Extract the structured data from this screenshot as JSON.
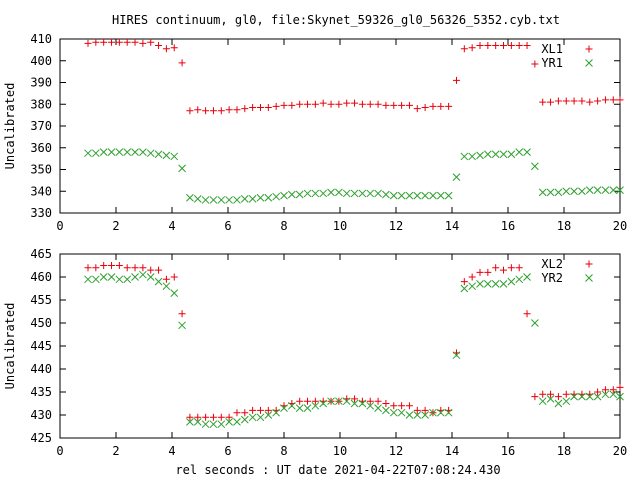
{
  "title": "HIRES continuum, gl0, file:Skynet_59326_gl0_56326_5352.cyb.txt",
  "xlabel": "rel seconds : UT date 2021-04-22T07:08:24.430",
  "colors": {
    "red": "#e8000b",
    "green": "#2ca02c"
  },
  "chart_data": [
    {
      "type": "scatter",
      "ylabel": "Uncalibrated",
      "xlim": [
        0,
        20
      ],
      "ylim": [
        330,
        410
      ],
      "xticks": [
        0,
        2,
        4,
        6,
        8,
        10,
        12,
        14,
        16,
        18,
        20
      ],
      "yticks": [
        330,
        340,
        350,
        360,
        370,
        380,
        390,
        400,
        410
      ],
      "grid": false,
      "legend_position": "top-right",
      "series": [
        {
          "name": "XL1",
          "marker": "plus",
          "color": "#e8000b",
          "x": [
            1.0,
            1.28,
            1.56,
            1.84,
            2.12,
            2.4,
            2.68,
            2.96,
            3.24,
            3.52,
            3.8,
            4.08,
            4.36,
            4.64,
            4.92,
            5.2,
            5.48,
            5.76,
            6.04,
            6.32,
            6.6,
            6.88,
            7.16,
            7.44,
            7.72,
            8.0,
            8.28,
            8.56,
            8.84,
            9.12,
            9.4,
            9.68,
            9.96,
            10.24,
            10.52,
            10.8,
            11.08,
            11.36,
            11.64,
            11.92,
            12.2,
            12.48,
            12.76,
            13.04,
            13.32,
            13.6,
            13.88,
            14.16,
            14.44,
            14.72,
            15.0,
            15.28,
            15.56,
            15.84,
            16.12,
            16.4,
            16.68,
            16.96,
            17.24,
            17.52,
            17.8,
            18.08,
            18.36,
            18.64,
            18.92,
            19.2,
            19.48,
            19.76,
            20.0
          ],
          "y": [
            408,
            408.5,
            408.5,
            408.5,
            408.5,
            408.5,
            408.5,
            408,
            408.5,
            407,
            405.5,
            406,
            399,
            377,
            377.5,
            377,
            377,
            377,
            377.5,
            377.5,
            378,
            378.5,
            378.5,
            378.5,
            379,
            379.5,
            379.5,
            380,
            380,
            380,
            380.5,
            380,
            380,
            380.5,
            380.5,
            380,
            380,
            380,
            379.5,
            379.5,
            379.5,
            379.5,
            378,
            378.5,
            379,
            379,
            379,
            391,
            405.5,
            406,
            407,
            407,
            407,
            407,
            407,
            407,
            407,
            398.5,
            381,
            381,
            381.5,
            381.5,
            381.5,
            381.5,
            381,
            381.5,
            382,
            382,
            382
          ]
        },
        {
          "name": "YR1",
          "marker": "cross",
          "color": "#2ca02c",
          "x": [
            1.0,
            1.28,
            1.56,
            1.84,
            2.12,
            2.4,
            2.68,
            2.96,
            3.24,
            3.52,
            3.8,
            4.08,
            4.36,
            4.64,
            4.92,
            5.2,
            5.48,
            5.76,
            6.04,
            6.32,
            6.6,
            6.88,
            7.16,
            7.44,
            7.72,
            8.0,
            8.28,
            8.56,
            8.84,
            9.12,
            9.4,
            9.68,
            9.96,
            10.24,
            10.52,
            10.8,
            11.08,
            11.36,
            11.64,
            11.92,
            12.2,
            12.48,
            12.76,
            13.04,
            13.32,
            13.6,
            13.88,
            14.16,
            14.44,
            14.72,
            15.0,
            15.28,
            15.56,
            15.84,
            16.12,
            16.4,
            16.68,
            16.96,
            17.24,
            17.52,
            17.8,
            18.08,
            18.36,
            18.64,
            18.92,
            19.2,
            19.48,
            19.76,
            20.0
          ],
          "y": [
            357.5,
            357.5,
            358,
            358,
            358,
            358,
            358,
            358,
            357.5,
            357,
            356.5,
            356,
            350.5,
            337,
            336.5,
            336,
            336,
            336,
            336,
            336,
            336.5,
            336.5,
            337,
            337,
            337.5,
            338,
            338.5,
            338.5,
            339,
            339,
            339,
            339.5,
            339.5,
            339,
            339,
            339,
            339,
            339,
            338.5,
            338,
            338,
            338,
            338,
            338,
            338,
            338,
            338,
            346.5,
            356,
            356,
            356.5,
            357,
            357,
            357,
            357,
            358,
            358,
            351.5,
            339.5,
            339.5,
            339.5,
            340,
            340,
            340,
            340.5,
            340.5,
            340.5,
            340.5,
            340.5
          ]
        }
      ]
    },
    {
      "type": "scatter",
      "ylabel": "Uncalibrated",
      "xlim": [
        0,
        20
      ],
      "ylim": [
        425,
        465
      ],
      "xticks": [
        0,
        2,
        4,
        6,
        8,
        10,
        12,
        14,
        16,
        18,
        20
      ],
      "yticks": [
        425,
        430,
        435,
        440,
        445,
        450,
        455,
        460,
        465
      ],
      "grid": false,
      "legend_position": "top-right",
      "series": [
        {
          "name": "XL2",
          "marker": "plus",
          "color": "#e8000b",
          "x": [
            1.0,
            1.28,
            1.56,
            1.84,
            2.12,
            2.4,
            2.68,
            2.96,
            3.24,
            3.52,
            3.8,
            4.08,
            4.36,
            4.64,
            4.92,
            5.2,
            5.48,
            5.76,
            6.04,
            6.32,
            6.6,
            6.88,
            7.16,
            7.44,
            7.72,
            8.0,
            8.28,
            8.56,
            8.84,
            9.12,
            9.4,
            9.68,
            9.96,
            10.24,
            10.52,
            10.8,
            11.08,
            11.36,
            11.64,
            11.92,
            12.2,
            12.48,
            12.76,
            13.04,
            13.32,
            13.6,
            13.88,
            14.16,
            14.44,
            14.72,
            15.0,
            15.28,
            15.56,
            15.84,
            16.12,
            16.4,
            16.68,
            16.96,
            17.24,
            17.52,
            17.8,
            18.08,
            18.36,
            18.64,
            18.92,
            19.2,
            19.48,
            19.76,
            20.0
          ],
          "y": [
            462,
            462,
            462.5,
            462.5,
            462.5,
            462,
            462,
            462,
            461.5,
            461.5,
            459.5,
            460,
            452,
            429.5,
            429.5,
            429.5,
            429.5,
            429.5,
            429.5,
            430.5,
            430.5,
            431,
            431,
            431,
            431,
            432,
            432.5,
            433,
            433,
            433,
            433,
            433,
            433,
            433.5,
            433.5,
            433,
            433,
            433,
            432.5,
            432,
            432,
            432,
            431,
            431,
            430.5,
            431,
            431,
            443.5,
            459,
            460,
            461,
            461,
            462,
            461.5,
            462,
            462,
            452,
            434,
            434.5,
            434.5,
            434,
            434.5,
            434.5,
            434.5,
            434.5,
            435,
            435.5,
            435.5,
            436
          ]
        },
        {
          "name": "YR2",
          "marker": "cross",
          "color": "#2ca02c",
          "x": [
            1.0,
            1.28,
            1.56,
            1.84,
            2.12,
            2.4,
            2.68,
            2.96,
            3.24,
            3.52,
            3.8,
            4.08,
            4.36,
            4.64,
            4.92,
            5.2,
            5.48,
            5.76,
            6.04,
            6.32,
            6.6,
            6.88,
            7.16,
            7.44,
            7.72,
            8.0,
            8.28,
            8.56,
            8.84,
            9.12,
            9.4,
            9.68,
            9.96,
            10.24,
            10.52,
            10.8,
            11.08,
            11.36,
            11.64,
            11.92,
            12.2,
            12.48,
            12.76,
            13.04,
            13.32,
            13.6,
            13.88,
            14.16,
            14.44,
            14.72,
            15.0,
            15.28,
            15.56,
            15.84,
            16.12,
            16.4,
            16.68,
            16.96,
            17.24,
            17.52,
            17.8,
            18.08,
            18.36,
            18.64,
            18.92,
            19.2,
            19.48,
            19.76,
            20.0
          ],
          "y": [
            459.5,
            459.5,
            460,
            460,
            459.5,
            459.5,
            460,
            460.5,
            460,
            459,
            458,
            456.5,
            449.5,
            428.5,
            428.5,
            428,
            428,
            428,
            428.5,
            428.5,
            429,
            429.5,
            429.5,
            430,
            430.5,
            431.5,
            432,
            431.5,
            431.5,
            432,
            432.5,
            433,
            433,
            433,
            432.5,
            432.5,
            432,
            431.5,
            431,
            430.5,
            430.5,
            430,
            430,
            430,
            430.5,
            430.5,
            430.5,
            443,
            457.5,
            458,
            458.5,
            458.5,
            458.5,
            458.5,
            459,
            459.5,
            460,
            450,
            433,
            433.5,
            432.5,
            433,
            434,
            434,
            434,
            434,
            434.5,
            434.5,
            434
          ]
        }
      ]
    }
  ]
}
